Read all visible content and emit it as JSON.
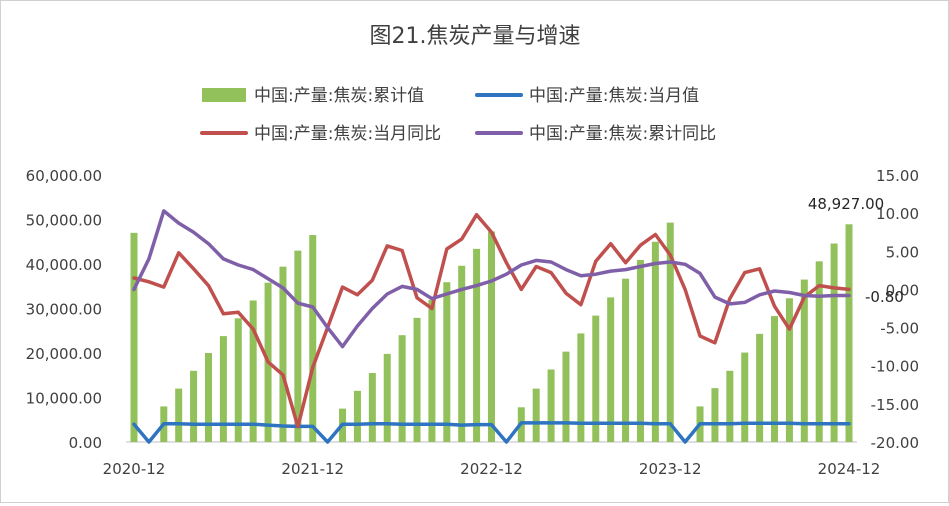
{
  "chart_data": {
    "type": "bar+line",
    "title": "图21.焦炭产量与增速",
    "x_tick_labels": [
      "2020-12",
      "2021-12",
      "2022-12",
      "2023-12",
      "2024-12"
    ],
    "y_left": {
      "min": 0,
      "max": 60000,
      "ticks": [
        "0.00",
        "10,000.00",
        "20,000.00",
        "30,000.00",
        "40,000.00",
        "50,000.00",
        "60,000.00"
      ]
    },
    "y_right": {
      "min": -20,
      "max": 15,
      "ticks": [
        "-20.00",
        "-15.00",
        "-10.00",
        "-5.00",
        "0.00",
        "5.00",
        "10.00",
        "15.00"
      ]
    },
    "legend": [
      {
        "name": "中国:产量:焦炭:累计值",
        "kind": "bar",
        "color": "#92c05a"
      },
      {
        "name": "中国:产量:焦炭:当月值",
        "kind": "line",
        "color": "#2f74c0"
      },
      {
        "name": "中国:产量:焦炭:当月同比",
        "kind": "line",
        "color": "#c0504d"
      },
      {
        "name": "中国:产量:焦炭:累计同比",
        "kind": "line",
        "color": "#7f60a8"
      }
    ],
    "annotations": [
      {
        "text": "48,927.00",
        "series": "中国:产量:焦炭:累计值",
        "point": "last"
      },
      {
        "text": "-0.80",
        "series": "中国:产量:焦炭:累计同比",
        "point": "last"
      }
    ],
    "x": [
      "2020-12",
      "2021-01",
      "2021-02",
      "2021-03",
      "2021-04",
      "2021-05",
      "2021-06",
      "2021-07",
      "2021-08",
      "2021-09",
      "2021-10",
      "2021-11",
      "2021-12",
      "2022-01",
      "2022-02",
      "2022-03",
      "2022-04",
      "2022-05",
      "2022-06",
      "2022-07",
      "2022-08",
      "2022-09",
      "2022-10",
      "2022-11",
      "2022-12",
      "2023-01",
      "2023-02",
      "2023-03",
      "2023-04",
      "2023-05",
      "2023-06",
      "2023-07",
      "2023-08",
      "2023-09",
      "2023-10",
      "2023-11",
      "2023-12",
      "2024-01",
      "2024-02",
      "2024-03",
      "2024-04",
      "2024-05",
      "2024-06",
      "2024-07",
      "2024-08",
      "2024-09",
      "2024-10",
      "2024-11",
      "2024-12"
    ],
    "series": [
      {
        "name": "中国:产量:焦炭:累计值",
        "type": "bar",
        "axis": "left",
        "values": [
          47000,
          null,
          8000,
          12000,
          16000,
          20000,
          23800,
          27800,
          31800,
          35800,
          39400,
          43000,
          46500,
          null,
          7500,
          11500,
          15500,
          19800,
          24000,
          27900,
          31900,
          35900,
          39600,
          43400,
          47300,
          null,
          7800,
          12000,
          16300,
          20300,
          24400,
          28400,
          32500,
          36700,
          40900,
          45000,
          49300,
          null,
          8000,
          12100,
          16000,
          20100,
          24300,
          28300,
          32300,
          36500,
          40600,
          44600,
          48927
        ]
      },
      {
        "name": "中国:产量:焦炭:当月值",
        "type": "line",
        "axis": "left",
        "values": [
          4000,
          0,
          4100,
          4100,
          4000,
          4000,
          4000,
          4000,
          4000,
          3800,
          3600,
          3500,
          3500,
          0,
          4000,
          4000,
          4100,
          4100,
          4000,
          4000,
          4000,
          4000,
          3800,
          3900,
          3900,
          0,
          4300,
          4300,
          4300,
          4300,
          4200,
          4200,
          4200,
          4200,
          4200,
          4100,
          4100,
          0,
          4100,
          4100,
          4100,
          4200,
          4200,
          4200,
          4200,
          4100,
          4100,
          4100,
          4100
        ]
      },
      {
        "name": "中国:产量:焦炭:当月同比",
        "type": "line",
        "axis": "right",
        "values": [
          1.5,
          1.0,
          0.3,
          4.8,
          2.7,
          0.5,
          -3.2,
          -3.0,
          -5.2,
          -9.5,
          -11.2,
          -18.0,
          -10.2,
          -5.0,
          0.3,
          -0.7,
          1.2,
          5.7,
          5.1,
          -1.1,
          -2.5,
          5.3,
          6.6,
          9.8,
          7.5,
          3.5,
          0.0,
          3.0,
          2.2,
          -0.5,
          -2.0,
          3.7,
          6.0,
          3.5,
          5.8,
          7.2,
          4.5,
          0.0,
          -6.1,
          -7.0,
          -1.2,
          2.2,
          2.7,
          -2.2,
          -5.2,
          -1.0,
          0.5,
          0.2,
          0.0
        ]
      },
      {
        "name": "中国:产量:焦炭:累计同比",
        "type": "line",
        "axis": "right",
        "values": [
          0.0,
          4.0,
          10.3,
          8.7,
          7.5,
          6.0,
          4.0,
          3.2,
          2.6,
          1.4,
          0.2,
          -1.8,
          -2.3,
          -5.0,
          -7.5,
          -4.8,
          -2.5,
          -0.6,
          0.4,
          0.0,
          -1.2,
          -0.6,
          0.0,
          0.5,
          1.1,
          2.0,
          3.2,
          3.8,
          3.6,
          2.6,
          1.8,
          2.0,
          2.4,
          2.6,
          3.0,
          3.4,
          3.6,
          3.3,
          2.1,
          -1.0,
          -1.9,
          -1.7,
          -0.7,
          -0.2,
          -0.4,
          -0.8,
          -0.9,
          -0.8,
          -0.8
        ]
      }
    ]
  }
}
